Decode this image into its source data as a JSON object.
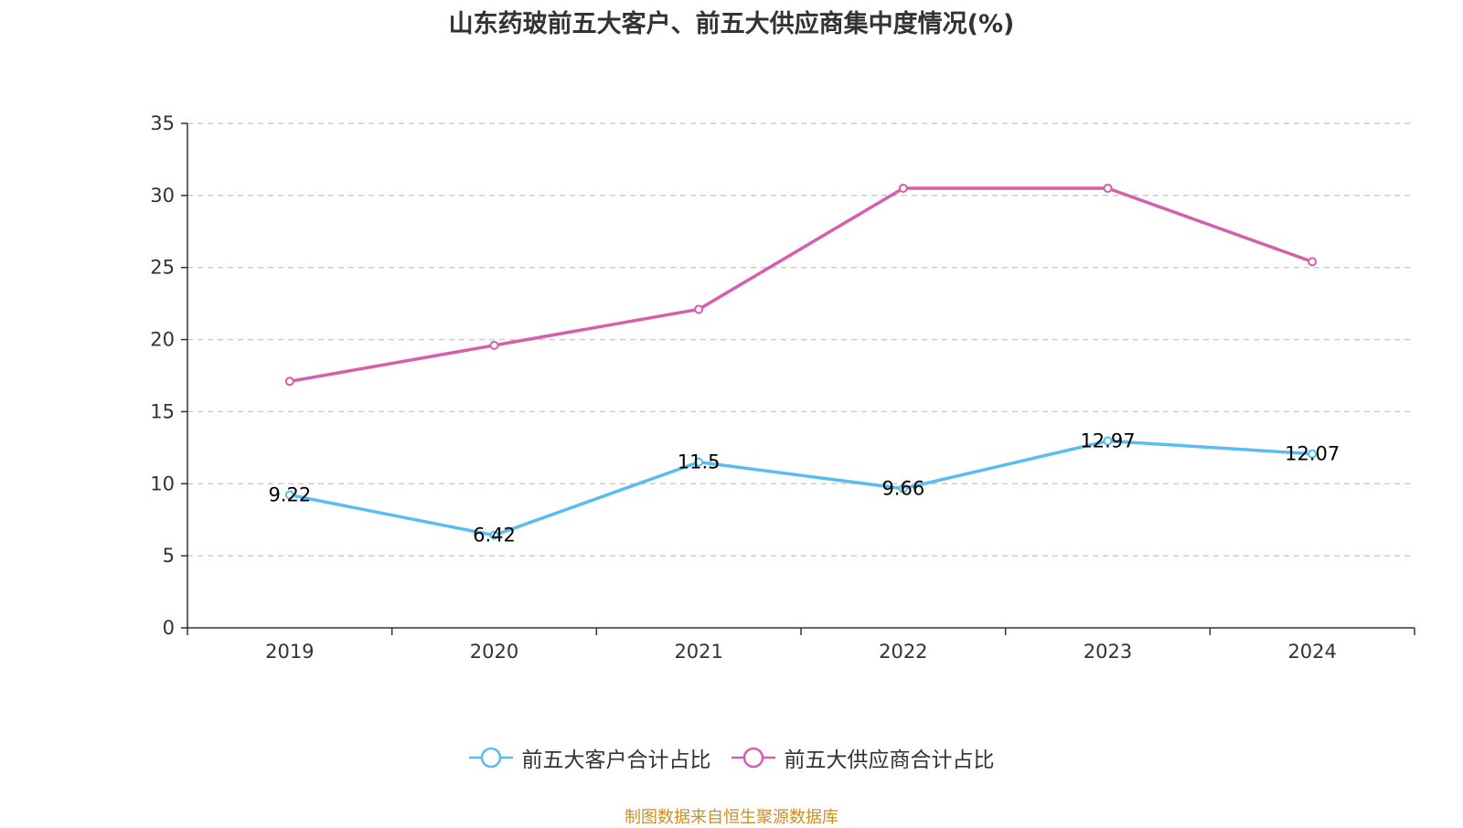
{
  "chart_data": {
    "type": "line",
    "title": "山东药玻前五大客户、前五大供应商集中度情况(%)",
    "categories": [
      "2019",
      "2020",
      "2021",
      "2022",
      "2023",
      "2024"
    ],
    "series": [
      {
        "name": "前五大客户合计占比",
        "color": "#5bbcf0",
        "values": [
          9.22,
          6.42,
          11.5,
          9.66,
          12.97,
          12.07
        ],
        "labels": [
          "9.22",
          "6.42",
          "11.5",
          "9.66",
          "12.97",
          "12.07"
        ],
        "show_labels": true
      },
      {
        "name": "前五大供应商合计占比",
        "color": "#d45fac",
        "values": [
          17.1,
          19.6,
          22.1,
          30.5,
          30.5,
          25.4
        ],
        "show_labels": false
      }
    ],
    "ylim": [
      0,
      35
    ],
    "yticks": [
      "0",
      "5",
      "10",
      "15",
      "20",
      "25",
      "30",
      "35"
    ],
    "grid": true,
    "legend_position": "bottom-center"
  },
  "source_note": {
    "text": "制图数据来自恒生聚源数据库",
    "color": "#c8902a"
  }
}
